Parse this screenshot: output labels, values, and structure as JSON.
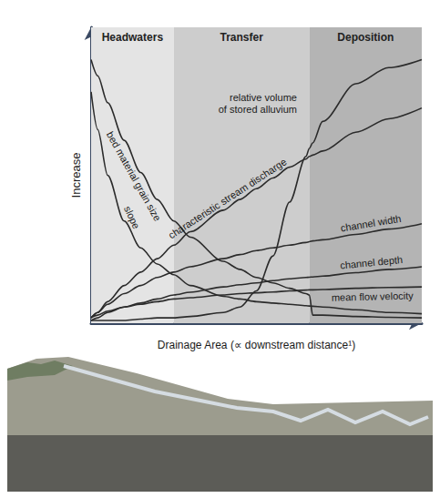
{
  "chart_data": {
    "type": "line",
    "xlabel": "Drainage Area (∝ downstream distance¹)",
    "ylabel": "Increase",
    "xlim": [
      0,
      100
    ],
    "ylim": [
      0,
      110
    ],
    "tick_labels": false,
    "grid": false,
    "zones": [
      {
        "label": "Headwaters",
        "from": 0,
        "to": 25,
        "color": "#e4e4e4"
      },
      {
        "label": "Transfer",
        "from": 25,
        "to": 66,
        "color": "#cdcdcd"
      },
      {
        "label": "Deposition",
        "from": 66,
        "to": 100,
        "color": "#b4b4b4"
      }
    ],
    "x": [
      0,
      2,
      5,
      10,
      15,
      20,
      25,
      30,
      40,
      45,
      50,
      55,
      60,
      65,
      66,
      67,
      70,
      80,
      90,
      100
    ],
    "series": [
      {
        "name": "bed material grain size",
        "color": "#2b2b2b",
        "line_style": "solid",
        "values": [
          98,
          92,
          82,
          68,
          56,
          46,
          38,
          32,
          23,
          20,
          17,
          15,
          13,
          11,
          10.5,
          3,
          3,
          2.5,
          2.2,
          2
        ]
      },
      {
        "name": "slope",
        "color": "#2b2b2b",
        "line_style": "solid",
        "values": [
          86,
          72,
          55,
          38,
          28,
          22,
          18,
          14,
          10,
          9,
          8,
          7.5,
          7,
          6.5,
          6.4,
          6.3,
          6,
          5,
          4,
          3.5
        ]
      },
      {
        "name": "characteristic stream discharge",
        "color": "#2b2b2b",
        "line_style": "solid",
        "values": [
          2,
          4,
          8,
          14,
          19,
          24,
          29,
          34,
          42,
          46,
          50,
          54,
          58,
          61,
          62,
          62.5,
          64,
          71,
          76,
          80
        ]
      },
      {
        "name": "relative volume of stored alluvium",
        "color": "#2b2b2b",
        "line_style": "solid",
        "values": [
          1,
          1,
          1,
          1,
          1.5,
          2,
          2,
          2.5,
          4,
          6,
          12,
          25,
          45,
          62,
          65,
          67,
          75,
          89,
          95,
          98
        ]
      },
      {
        "name": "channel width",
        "color": "#2b2b2b",
        "line_style": "solid",
        "values": [
          2,
          4,
          7,
          11,
          14,
          17,
          19,
          21,
          24,
          25.5,
          27,
          28,
          29,
          30,
          30.3,
          30.6,
          31,
          33,
          35,
          37
        ]
      },
      {
        "name": "channel depth",
        "color": "#2b2b2b",
        "line_style": "solid",
        "values": [
          1,
          2,
          4,
          6,
          7.5,
          9,
          10.5,
          11.5,
          13.5,
          14.3,
          15,
          15.8,
          16.5,
          17,
          17.1,
          17.2,
          17.5,
          18.8,
          20,
          21
        ]
      },
      {
        "name": "mean flow velocity",
        "color": "#2b2b2b",
        "line_style": "solid",
        "values": [
          2,
          3,
          4.5,
          6,
          7,
          8,
          9,
          9.5,
          10.5,
          11,
          11.3,
          11.6,
          12,
          12.3,
          12.4,
          12.4,
          12.5,
          13,
          13.3,
          13.5
        ]
      }
    ]
  }
}
